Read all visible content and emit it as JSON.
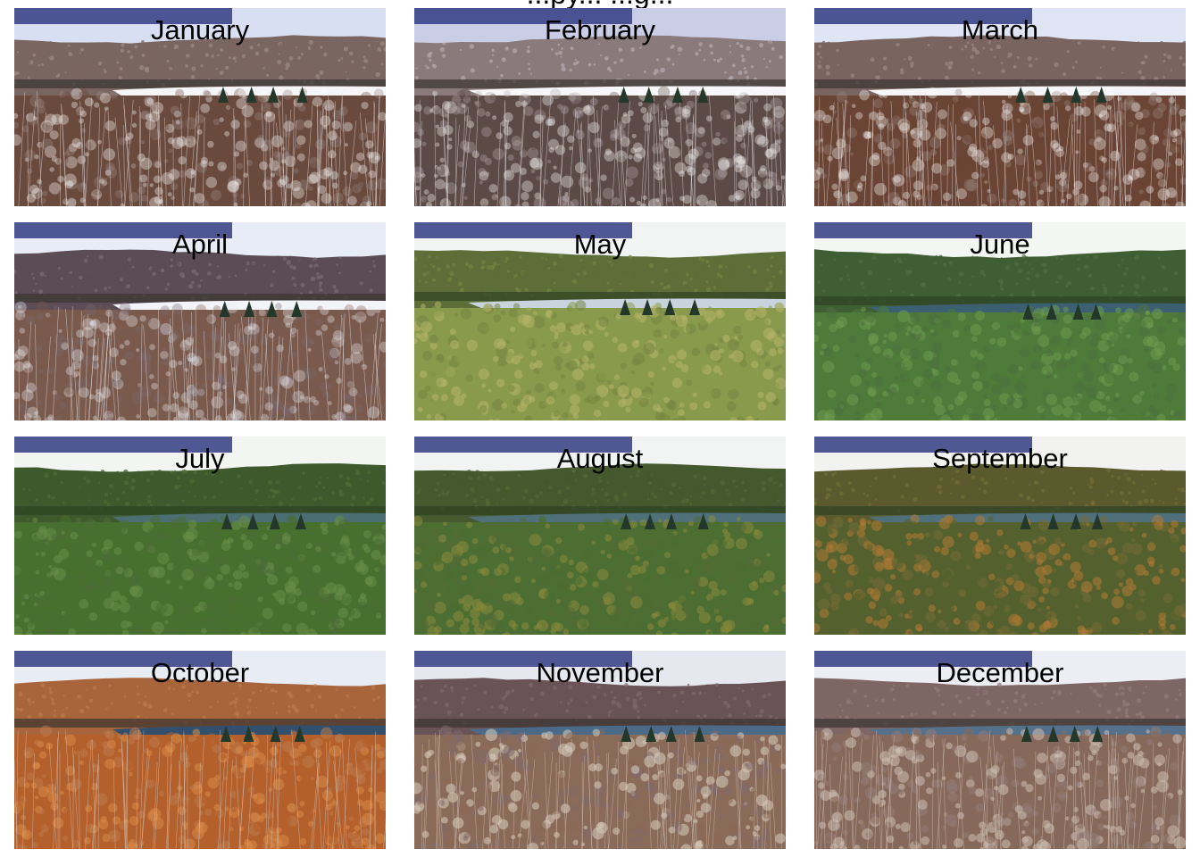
{
  "figure": {
    "title": "...py... ...g..."
  },
  "panels": [
    {
      "month": "January",
      "scene": "winter-snow-lake",
      "palette": {
        "sky": "#d9dff2",
        "hill": "#7a6660",
        "hillTop": "#9a8a86",
        "water": "#f5f5f8",
        "fore": "#6b4a3e",
        "accent": "#ffffff"
      }
    },
    {
      "month": "February",
      "scene": "winter-snow-lake",
      "palette": {
        "sky": "#c9cde6",
        "hill": "#8a7a7c",
        "hillTop": "#b5aab0",
        "water": "#f7f7fa",
        "fore": "#5c4a46",
        "accent": "#ffffff"
      }
    },
    {
      "month": "March",
      "scene": "winter-snow-lake",
      "palette": {
        "sky": "#dfe5f5",
        "hill": "#7a6460",
        "hillTop": "#9b8985",
        "water": "#f5f5f8",
        "fore": "#6a4434",
        "accent": "#ffffff"
      }
    },
    {
      "month": "April",
      "scene": "thaw-lake",
      "palette": {
        "sky": "#e7ecf7",
        "hill": "#5b4c55",
        "hillTop": "#7a6b74",
        "water": "#f3f4f8",
        "fore": "#7a5a4c",
        "accent": "#e9ecf2"
      }
    },
    {
      "month": "May",
      "scene": "spring-green-lake",
      "palette": {
        "sky": "#f2f4f4",
        "hill": "#5d6e38",
        "hillTop": "#748542",
        "water": "#c8d4dd",
        "fore": "#8a9a4c",
        "accent": "#b7b46a"
      }
    },
    {
      "month": "June",
      "scene": "summer-green-lake",
      "palette": {
        "sky": "#f4f6f4",
        "hill": "#3f5e34",
        "hillTop": "#4f7040",
        "water": "#3d5f72",
        "fore": "#4e7a3a",
        "accent": "#6e9a4e"
      }
    },
    {
      "month": "July",
      "scene": "summer-green-lake",
      "palette": {
        "sky": "#f2f5f2",
        "hill": "#3e5a2c",
        "hillTop": "#4d6c36",
        "water": "#4a6e72",
        "fore": "#47702f",
        "accent": "#6a8e48"
      }
    },
    {
      "month": "August",
      "scene": "summer-green-lake",
      "palette": {
        "sky": "#f1f4f2",
        "hill": "#44592e",
        "hillTop": "#536b36",
        "water": "#4f7078",
        "fore": "#4d6e32",
        "accent": "#8a8a3c"
      }
    },
    {
      "month": "September",
      "scene": "early-fall-lake",
      "palette": {
        "sky": "#f2f3f0",
        "hill": "#5b5a2e",
        "hillTop": "#746c36",
        "water": "#4f6f7a",
        "fore": "#54612e",
        "accent": "#b07a34"
      }
    },
    {
      "month": "October",
      "scene": "peak-fall-lake",
      "palette": {
        "sky": "#e8ecf4",
        "hill": "#a8643a",
        "hillTop": "#bb7a4c",
        "water": "#32506e",
        "fore": "#b4602c",
        "accent": "#d88a48"
      }
    },
    {
      "month": "November",
      "scene": "late-fall-lake",
      "palette": {
        "sky": "#e6e8ef",
        "hill": "#6a5356",
        "hillTop": "#806a6c",
        "water": "#4a6a88",
        "fore": "#8a6a58",
        "accent": "#d9cdbd"
      }
    },
    {
      "month": "December",
      "scene": "late-fall-lake",
      "palette": {
        "sky": "#eceef4",
        "hill": "#7e6664",
        "hillTop": "#937c78",
        "water": "#55708a",
        "fore": "#86695a",
        "accent": "#cdbfb4"
      }
    }
  ]
}
